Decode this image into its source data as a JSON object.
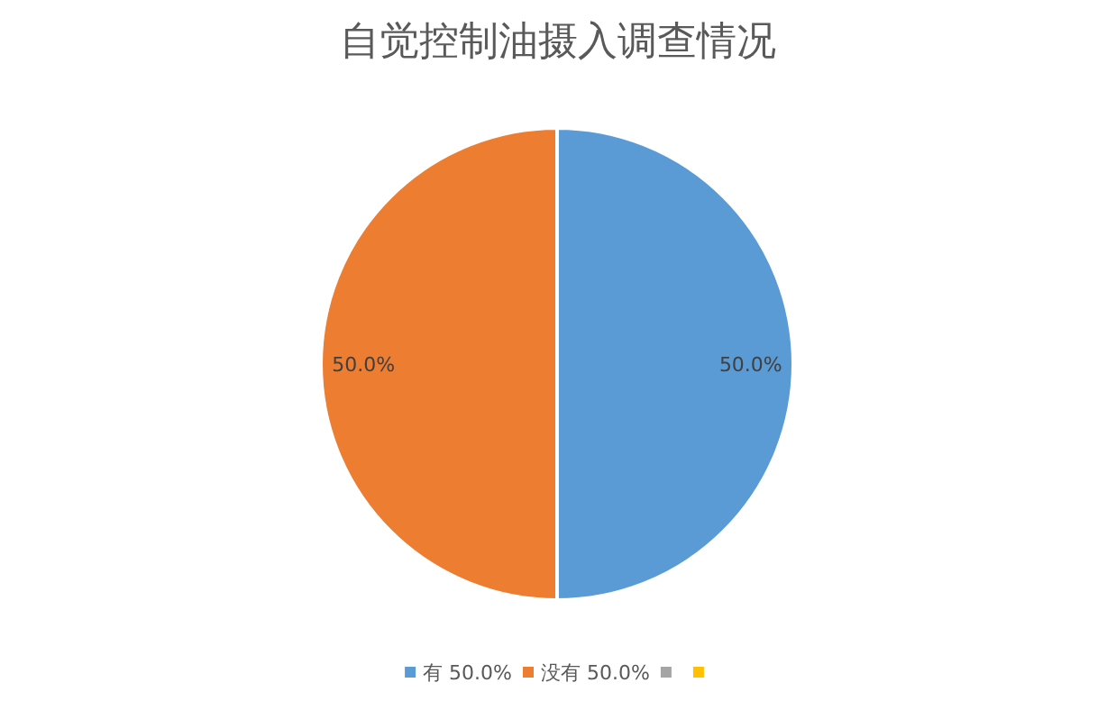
{
  "chart_data": {
    "type": "pie",
    "title": "自觉控制油摄入调查情况",
    "categories": [
      "有",
      "没有",
      null,
      null
    ],
    "values": [
      50,
      50,
      0,
      0
    ],
    "colors": [
      "#5b9bd5",
      "#ed7d31",
      "#a5a5a5",
      "#ffc000"
    ],
    "value_labels": [
      "50.0%",
      "50.0%",
      null,
      null
    ],
    "legend": "bottom"
  }
}
